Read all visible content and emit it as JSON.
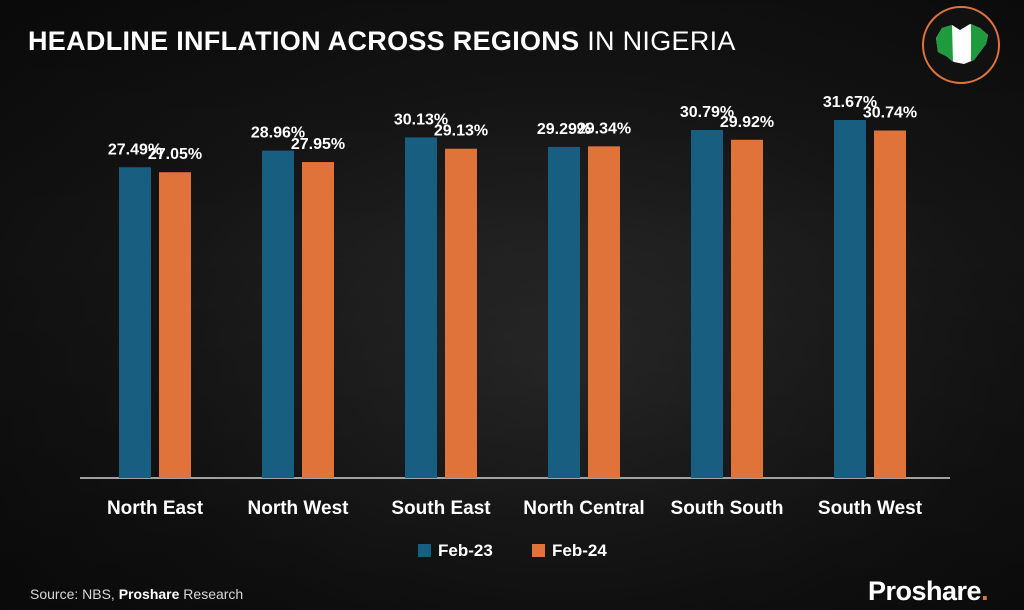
{
  "header": {
    "title_bold": "HEADLINE INFLATION ACROSS REGIONS",
    "title_light": " IN NIGERIA"
  },
  "footer": {
    "source_prefix": "Source: NBS, ",
    "source_strong": "Proshare",
    "source_suffix": " Research",
    "brand": "Proshare",
    "brand_dot": "."
  },
  "chart_data": {
    "type": "bar",
    "categories": [
      "North East",
      "North West",
      "South East",
      "North Central",
      "South South",
      "South West"
    ],
    "series": [
      {
        "name": "Feb-23",
        "color": "#185e80",
        "values": [
          27.49,
          28.96,
          30.13,
          29.29,
          30.79,
          31.67
        ],
        "labels": [
          "27.49%",
          "28.96%",
          "30.13%",
          "29.29%",
          "30.79%",
          "31.67%"
        ]
      },
      {
        "name": "Feb-24",
        "color": "#e0733a",
        "values": [
          27.05,
          27.95,
          29.13,
          29.34,
          29.92,
          30.74
        ],
        "labels": [
          "27.05%",
          "27.95%",
          "29.13%",
          "29.34%",
          "29.92%",
          "30.74%"
        ]
      }
    ],
    "legend_position": "bottom",
    "grid": false
  }
}
